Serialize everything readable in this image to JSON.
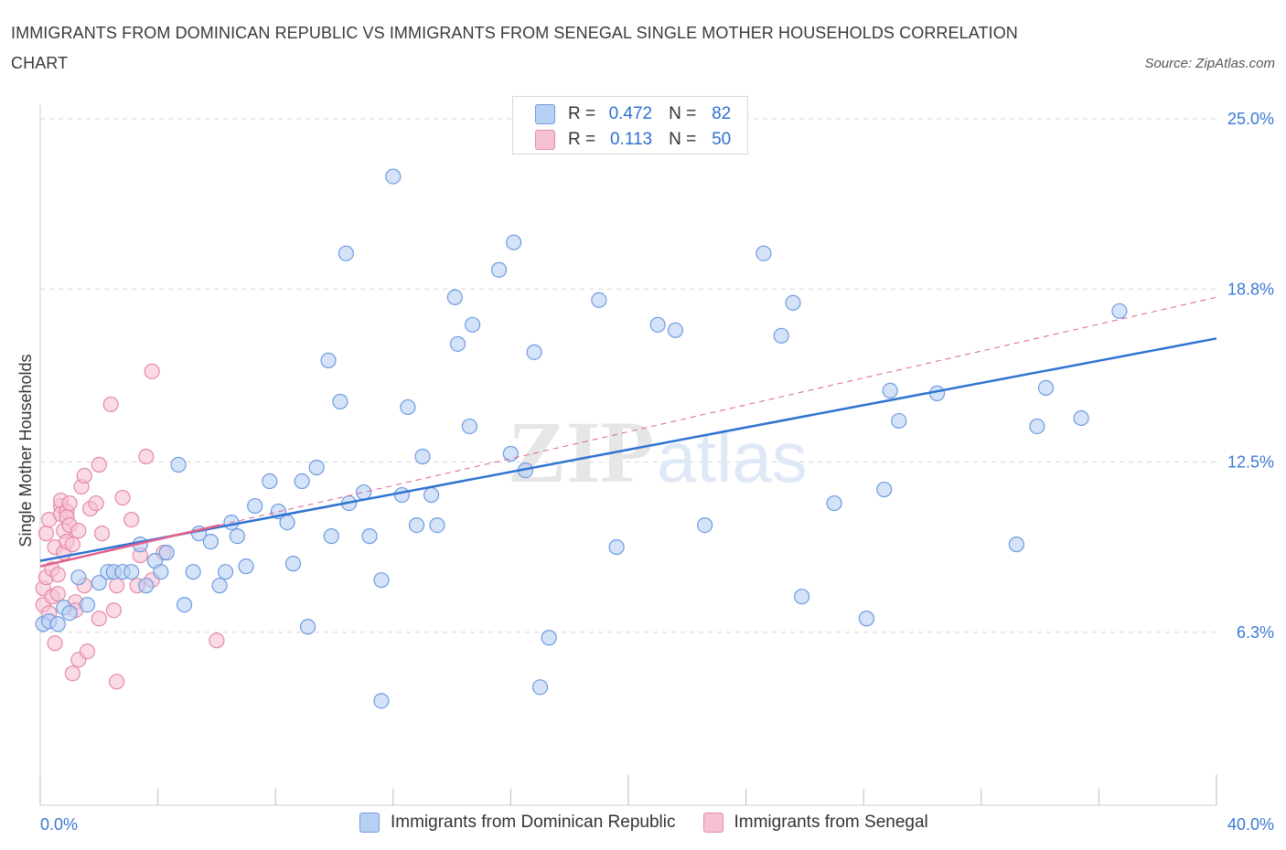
{
  "title": "IMMIGRANTS FROM DOMINICAN REPUBLIC VS IMMIGRANTS FROM SENEGAL SINGLE MOTHER HOUSEHOLDS CORRELATION CHART",
  "source": "Source: ZipAtlas.com",
  "watermark": {
    "zip": "ZIP",
    "atlas": "atlas"
  },
  "legend": {
    "rows": [
      {
        "r_label": "R =",
        "r_value": "0.472",
        "n_label": "N =",
        "n_value": "82"
      },
      {
        "r_label": "R =",
        "r_value": "0.113",
        "n_label": "N =",
        "n_value": "50"
      }
    ]
  },
  "bottom_legend": {
    "items": [
      "Immigrants from Dominican Republic",
      "Immigrants from Senegal"
    ]
  },
  "colors": {
    "blue_fill": "#b8d0f3",
    "blue_stroke": "#6f9be0",
    "blue_line": "#2f73d2",
    "pink_fill": "#f6c2d2",
    "pink_stroke": "#e58aa8",
    "pink_line": "#e0608c",
    "axis_text": "#3a78d4",
    "grid": "#d6d6d6"
  },
  "chart_data": {
    "type": "scatter",
    "title": "IMMIGRANTS FROM DOMINICAN REPUBLIC VS IMMIGRANTS FROM SENEGAL SINGLE MOTHER HOUSEHOLDS CORRELATION CHART",
    "xlabel": "",
    "ylabel": "Single Mother Households",
    "xlim": [
      0,
      40
    ],
    "ylim": [
      0,
      25.5
    ],
    "x_tick_labels": [
      "0.0%",
      "40.0%"
    ],
    "y_ticks": [
      6.3,
      12.5,
      18.8,
      25.0
    ],
    "y_tick_labels": [
      "6.3%",
      "12.5%",
      "18.8%",
      "25.0%"
    ],
    "grid": true,
    "legend_placement": "top-center",
    "series": [
      {
        "name": "Immigrants from Dominican Republic",
        "color": "#b8d0f3",
        "points": [
          [
            0.1,
            6.6
          ],
          [
            0.3,
            6.7
          ],
          [
            0.6,
            6.6
          ],
          [
            0.8,
            7.2
          ],
          [
            1.0,
            7.0
          ],
          [
            1.3,
            8.3
          ],
          [
            1.6,
            7.3
          ],
          [
            2.0,
            8.1
          ],
          [
            2.3,
            8.5
          ],
          [
            2.5,
            8.5
          ],
          [
            2.8,
            8.5
          ],
          [
            3.1,
            8.5
          ],
          [
            3.4,
            9.5
          ],
          [
            3.6,
            8.0
          ],
          [
            3.9,
            8.9
          ],
          [
            4.1,
            8.5
          ],
          [
            4.3,
            9.2
          ],
          [
            4.7,
            12.4
          ],
          [
            4.9,
            7.3
          ],
          [
            5.2,
            8.5
          ],
          [
            5.4,
            9.9
          ],
          [
            5.8,
            9.6
          ],
          [
            6.1,
            8.0
          ],
          [
            6.3,
            8.5
          ],
          [
            6.5,
            10.3
          ],
          [
            6.7,
            9.8
          ],
          [
            7.0,
            8.7
          ],
          [
            7.3,
            10.9
          ],
          [
            7.8,
            11.8
          ],
          [
            8.1,
            10.7
          ],
          [
            8.4,
            10.3
          ],
          [
            8.6,
            8.8
          ],
          [
            8.9,
            11.8
          ],
          [
            9.1,
            6.5
          ],
          [
            9.4,
            12.3
          ],
          [
            9.8,
            16.2
          ],
          [
            9.9,
            9.8
          ],
          [
            10.2,
            14.7
          ],
          [
            10.5,
            11.0
          ],
          [
            10.4,
            20.1
          ],
          [
            11.0,
            11.4
          ],
          [
            11.2,
            9.8
          ],
          [
            11.6,
            8.2
          ],
          [
            11.6,
            3.8
          ],
          [
            12.0,
            22.9
          ],
          [
            12.3,
            11.3
          ],
          [
            12.5,
            14.5
          ],
          [
            12.8,
            10.2
          ],
          [
            13.0,
            12.7
          ],
          [
            13.3,
            11.3
          ],
          [
            13.5,
            10.2
          ],
          [
            14.1,
            18.5
          ],
          [
            14.2,
            16.8
          ],
          [
            14.6,
            13.8
          ],
          [
            14.7,
            17.5
          ],
          [
            15.6,
            19.5
          ],
          [
            16.0,
            12.8
          ],
          [
            16.1,
            20.5
          ],
          [
            16.5,
            12.2
          ],
          [
            16.8,
            16.5
          ],
          [
            17.0,
            4.3
          ],
          [
            17.3,
            6.1
          ],
          [
            19.0,
            18.4
          ],
          [
            19.6,
            9.4
          ],
          [
            21.0,
            17.5
          ],
          [
            21.6,
            17.3
          ],
          [
            22.6,
            10.2
          ],
          [
            24.6,
            20.1
          ],
          [
            25.2,
            17.1
          ],
          [
            25.6,
            18.3
          ],
          [
            25.9,
            7.6
          ],
          [
            27.0,
            11.0
          ],
          [
            28.1,
            6.8
          ],
          [
            28.7,
            11.5
          ],
          [
            28.9,
            15.1
          ],
          [
            29.2,
            14.0
          ],
          [
            30.5,
            15.0
          ],
          [
            33.2,
            9.5
          ],
          [
            33.9,
            13.8
          ],
          [
            34.2,
            15.2
          ],
          [
            35.4,
            14.1
          ],
          [
            36.7,
            18.0
          ]
        ]
      },
      {
        "name": "Immigrants from Senegal",
        "color": "#f6c2d2",
        "points": [
          [
            0.1,
            7.3
          ],
          [
            0.1,
            7.9
          ],
          [
            0.2,
            8.3
          ],
          [
            0.2,
            9.9
          ],
          [
            0.3,
            10.4
          ],
          [
            0.3,
            7.0
          ],
          [
            0.4,
            8.6
          ],
          [
            0.4,
            7.6
          ],
          [
            0.5,
            9.4
          ],
          [
            0.5,
            5.9
          ],
          [
            0.6,
            8.4
          ],
          [
            0.6,
            7.7
          ],
          [
            0.7,
            10.9
          ],
          [
            0.7,
            11.1
          ],
          [
            0.7,
            10.6
          ],
          [
            0.8,
            10.0
          ],
          [
            0.8,
            9.2
          ],
          [
            0.9,
            10.7
          ],
          [
            0.9,
            10.5
          ],
          [
            0.9,
            9.6
          ],
          [
            1.0,
            11.0
          ],
          [
            1.0,
            10.2
          ],
          [
            1.1,
            9.5
          ],
          [
            1.1,
            4.8
          ],
          [
            1.2,
            7.4
          ],
          [
            1.2,
            7.1
          ],
          [
            1.3,
            10.0
          ],
          [
            1.3,
            5.3
          ],
          [
            1.4,
            11.6
          ],
          [
            1.5,
            12.0
          ],
          [
            1.5,
            8.0
          ],
          [
            1.6,
            5.6
          ],
          [
            1.7,
            10.8
          ],
          [
            1.9,
            11.0
          ],
          [
            2.0,
            6.8
          ],
          [
            2.0,
            12.4
          ],
          [
            2.1,
            9.9
          ],
          [
            2.4,
            14.6
          ],
          [
            2.5,
            7.1
          ],
          [
            2.6,
            4.5
          ],
          [
            2.6,
            8.0
          ],
          [
            2.8,
            11.2
          ],
          [
            3.1,
            10.4
          ],
          [
            3.3,
            8.0
          ],
          [
            3.4,
            9.1
          ],
          [
            3.6,
            12.7
          ],
          [
            3.8,
            8.2
          ],
          [
            3.8,
            15.8
          ],
          [
            4.2,
            9.2
          ],
          [
            6.0,
            6.0
          ]
        ]
      }
    ],
    "trend_lines": [
      {
        "series": "Immigrants from Dominican Republic",
        "style": "solid",
        "from": [
          0,
          8.9
        ],
        "to": [
          40,
          17.0
        ]
      },
      {
        "series": "Immigrants from Senegal",
        "style": "solid",
        "from": [
          0,
          8.7
        ],
        "to": [
          6.1,
          10.2
        ]
      },
      {
        "series": "Immigrants from Senegal",
        "style": "dashed",
        "from": [
          6.1,
          10.2
        ],
        "to": [
          40,
          18.5
        ]
      }
    ]
  }
}
